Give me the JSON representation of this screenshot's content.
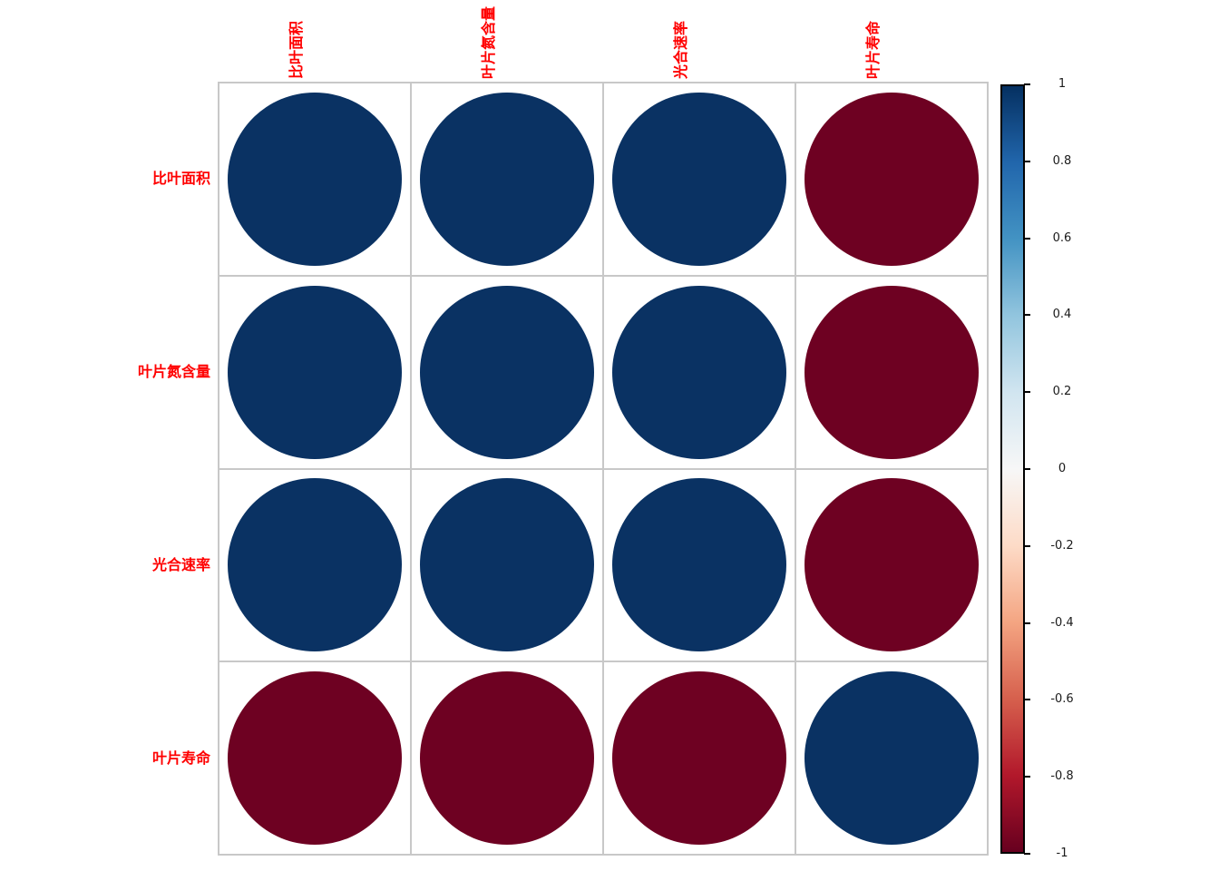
{
  "chart_data": {
    "type": "heatmap",
    "subtype": "correlation-matrix-circle-plot",
    "title": "",
    "variables": [
      "比叶面积",
      "叶片氮含量",
      "光合速率",
      "叶片寿命"
    ],
    "matrix": [
      [
        1,
        1,
        1,
        -1
      ],
      [
        1,
        1,
        1,
        -1
      ],
      [
        1,
        1,
        1,
        -1
      ],
      [
        -1,
        -1,
        -1,
        1
      ]
    ],
    "legend_position": "right",
    "grid_on": true,
    "colorbar": {
      "range": [
        -1,
        1
      ],
      "ticks": [
        1,
        0.8,
        0.6,
        0.4,
        0.2,
        0,
        -0.2,
        -0.4,
        -0.6,
        -0.8,
        -1
      ],
      "tick_labels": [
        "1",
        "0.8",
        "0.6",
        "0.4",
        "0.2",
        "0",
        "-0.2",
        "-0.4",
        "-0.6",
        "-0.8",
        "-1"
      ],
      "gradient_colors": [
        "#053061",
        "#2166ac",
        "#4393c3",
        "#92c5de",
        "#d1e5f0",
        "#f7f7f7",
        "#fddbc7",
        "#f4a582",
        "#d6604d",
        "#b2182b",
        "#67001f"
      ]
    },
    "colors": {
      "positive_circle": "#0a3263",
      "negative_circle": "#6e0122",
      "variable_label": "#ff0000",
      "grid_line": "#c8c8c8",
      "tick_text": "#1a1a1a",
      "background": "#ffffff",
      "colorbar_border": "#000000"
    }
  }
}
